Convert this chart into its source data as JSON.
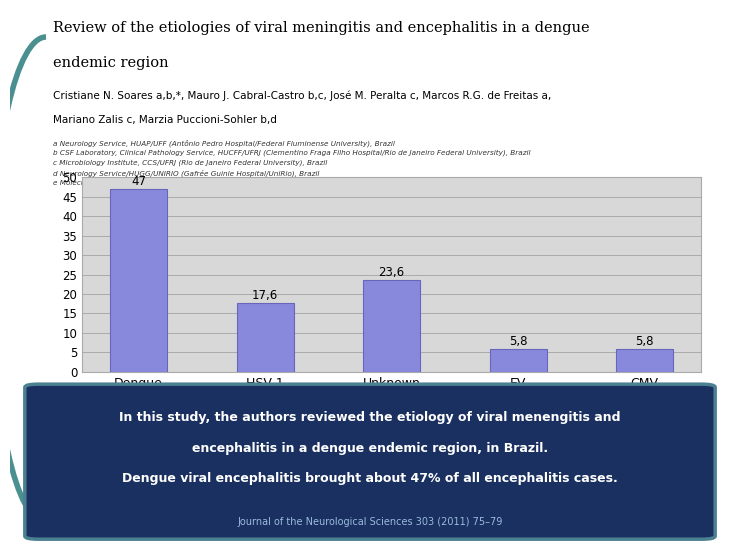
{
  "categories": [
    "Dengue",
    "HSV 1",
    "Unknown",
    "EV",
    "CMV"
  ],
  "values": [
    47,
    17.6,
    23.6,
    5.8,
    5.8
  ],
  "bar_color": "#8888dd",
  "bar_edgecolor": "#6666bb",
  "chart_bg": "#d8d8d8",
  "chart_grid_color": "#bbbbbb",
  "ylim": [
    0,
    50
  ],
  "yticks": [
    0,
    5,
    10,
    15,
    20,
    25,
    30,
    35,
    40,
    45,
    50
  ],
  "title_line1": "Review of the etiologies of viral meningitis and encephalitis in a dengue",
  "title_line2": "endemic region",
  "authors": "Cristiane N. Soares a,b,*, Mauro J. Cabral-Castro b,c, José M. Peralta c, Marcos R.G. de Freitas a,",
  "authors2": "Mariano Zalis c, Marzia Puccioni-Sohler b,d",
  "affiliations": [
    "a Neurology Service, HUAP/UFF (Antônio Pedro Hospital/Federal Fluminense University), Brazil",
    "b CSF Laboratory, Clinical Pathology Service, HUCFF/UFRJ (Clementino Fraga Filho Hospital/Rio de Janeiro Federal University), Brazil",
    "c Microbiology Institute, CCS/UFRJ (Rio de Janeiro Federal University), Brazil",
    "d Neurology Service/HUGG/UNIRIO (Gafrée Guinle Hospital/UniRio), Brazil",
    "e Molecular Biology Laboratory, Clinical Pathology Service, HUCFF/UFRJ (Clementino Fraga Filho Hospital/Rio de Janeiro Federal University), Brazil"
  ],
  "box_bg": "#1a3060",
  "box_border": "#4a8090",
  "box_text1": "In this study, the authors reviewed the etiology of viral menengitis and",
  "box_text2": "encephalitis in a dengue endemic region, in Brazil.",
  "box_text3": "Dengue viral encephalitis brought about 47% of all encephalitis cases.",
  "journal": "Journal of the Neurological Sciences 303 (2011) 75–79",
  "outer_bg": "#ffffff",
  "left_border_color": "#4a9090",
  "bar_labels": [
    "47",
    "17,6",
    "23,6",
    "5,8",
    "5,8"
  ]
}
